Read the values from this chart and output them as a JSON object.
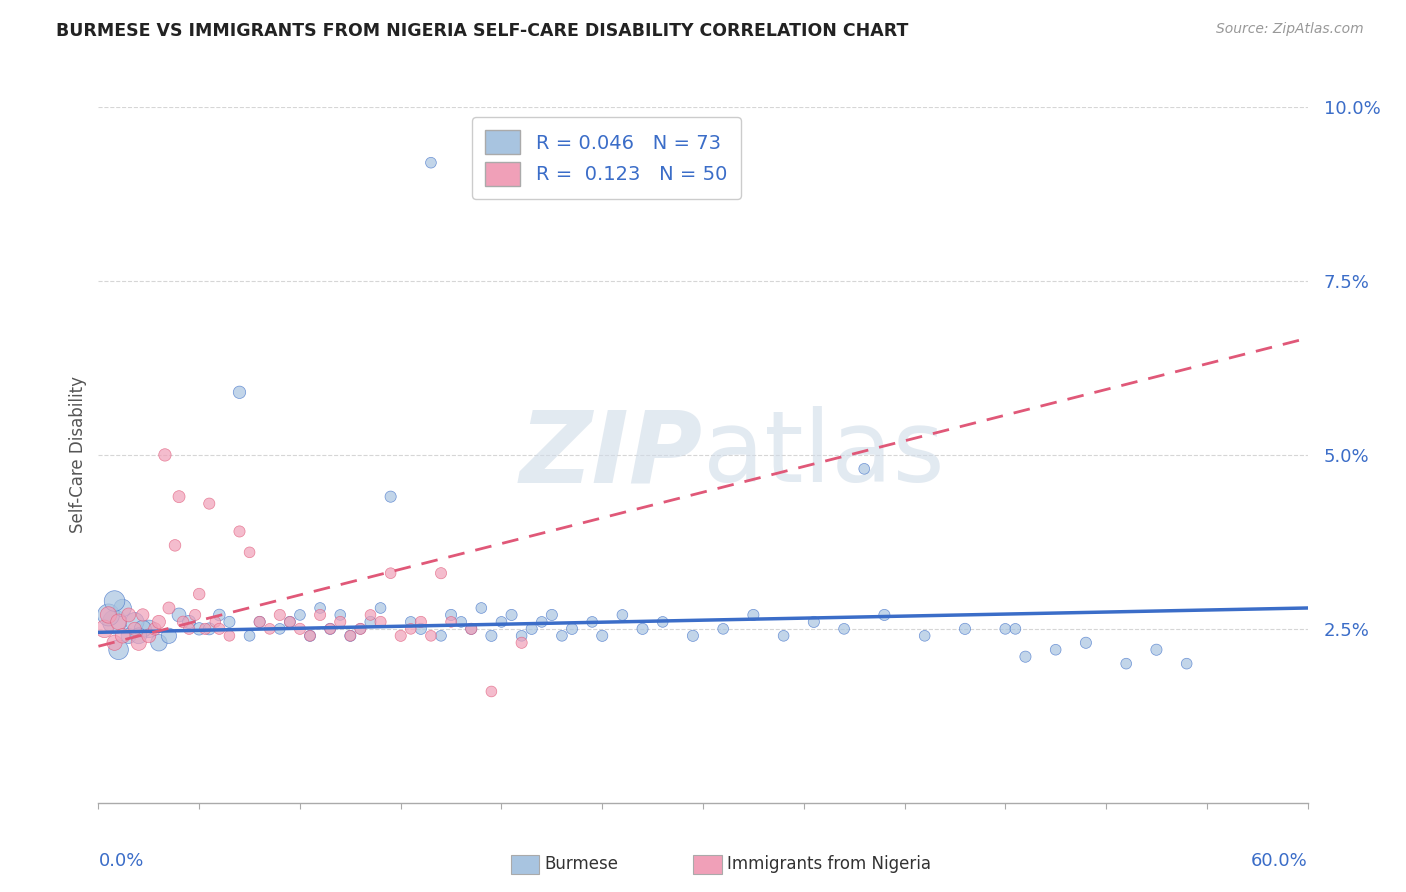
{
  "title": "BURMESE VS IMMIGRANTS FROM NIGERIA SELF-CARE DISABILITY CORRELATION CHART",
  "source": "Source: ZipAtlas.com",
  "ylabel": "Self-Care Disability",
  "xmin": 0.0,
  "xmax": 0.6,
  "ymin": 0.0,
  "ymax": 0.1,
  "ytick_positions": [
    0.025,
    0.05,
    0.075,
    0.1
  ],
  "ytick_labels": [
    "2.5%",
    "5.0%",
    "7.5%",
    "10.0%"
  ],
  "color_blue": "#a8c4e0",
  "color_pink": "#f0a0b8",
  "color_blue_dark": "#3b6dc8",
  "color_pink_dark": "#e05878",
  "background_color": "#ffffff",
  "grid_color": "#cccccc",
  "watermark_color": "#d0dce8",
  "title_color": "#222222",
  "source_color": "#999999",
  "axis_label_color": "#3b6dc8",
  "ylabel_color": "#555555",
  "burmese_x": [
    0.165,
    0.008,
    0.015,
    0.005,
    0.01,
    0.025,
    0.03,
    0.018,
    0.022,
    0.04,
    0.035,
    0.012,
    0.045,
    0.05,
    0.008,
    0.02,
    0.055,
    0.06,
    0.065,
    0.07,
    0.075,
    0.08,
    0.09,
    0.095,
    0.1,
    0.105,
    0.11,
    0.115,
    0.12,
    0.125,
    0.13,
    0.135,
    0.14,
    0.145,
    0.155,
    0.16,
    0.17,
    0.175,
    0.18,
    0.185,
    0.19,
    0.195,
    0.2,
    0.205,
    0.21,
    0.215,
    0.22,
    0.225,
    0.23,
    0.235,
    0.245,
    0.25,
    0.26,
    0.27,
    0.28,
    0.295,
    0.31,
    0.325,
    0.34,
    0.355,
    0.37,
    0.39,
    0.41,
    0.43,
    0.45,
    0.46,
    0.475,
    0.49,
    0.51,
    0.525,
    0.38,
    0.54,
    0.455
  ],
  "burmese_y": [
    0.092,
    0.026,
    0.024,
    0.027,
    0.022,
    0.025,
    0.023,
    0.026,
    0.025,
    0.027,
    0.024,
    0.028,
    0.026,
    0.025,
    0.029,
    0.024,
    0.025,
    0.027,
    0.026,
    0.059,
    0.024,
    0.026,
    0.025,
    0.026,
    0.027,
    0.024,
    0.028,
    0.025,
    0.027,
    0.024,
    0.025,
    0.026,
    0.028,
    0.044,
    0.026,
    0.025,
    0.024,
    0.027,
    0.026,
    0.025,
    0.028,
    0.024,
    0.026,
    0.027,
    0.024,
    0.025,
    0.026,
    0.027,
    0.024,
    0.025,
    0.026,
    0.024,
    0.027,
    0.025,
    0.026,
    0.024,
    0.025,
    0.027,
    0.024,
    0.026,
    0.025,
    0.027,
    0.024,
    0.025,
    0.025,
    0.021,
    0.022,
    0.023,
    0.02,
    0.022,
    0.048,
    0.02,
    0.025
  ],
  "burmese_size": [
    60,
    300,
    120,
    250,
    200,
    160,
    140,
    180,
    150,
    100,
    120,
    160,
    90,
    80,
    220,
    130,
    75,
    70,
    65,
    80,
    60,
    65,
    60,
    65,
    60,
    65,
    60,
    65,
    60,
    65,
    60,
    65,
    60,
    65,
    60,
    65,
    60,
    65,
    60,
    65,
    60,
    65,
    60,
    65,
    60,
    65,
    60,
    65,
    60,
    65,
    60,
    65,
    60,
    65,
    60,
    65,
    60,
    65,
    60,
    65,
    60,
    65,
    60,
    65,
    60,
    65,
    60,
    65,
    60,
    65,
    60,
    60,
    60
  ],
  "nigeria_x": [
    0.003,
    0.005,
    0.008,
    0.01,
    0.012,
    0.015,
    0.018,
    0.02,
    0.022,
    0.025,
    0.028,
    0.03,
    0.033,
    0.035,
    0.038,
    0.04,
    0.042,
    0.045,
    0.048,
    0.05,
    0.053,
    0.055,
    0.058,
    0.06,
    0.065,
    0.07,
    0.075,
    0.08,
    0.085,
    0.09,
    0.095,
    0.1,
    0.105,
    0.11,
    0.115,
    0.12,
    0.125,
    0.13,
    0.135,
    0.14,
    0.145,
    0.15,
    0.155,
    0.16,
    0.165,
    0.17,
    0.175,
    0.185,
    0.195,
    0.21
  ],
  "nigeria_y": [
    0.025,
    0.027,
    0.023,
    0.026,
    0.024,
    0.027,
    0.025,
    0.023,
    0.027,
    0.024,
    0.025,
    0.026,
    0.05,
    0.028,
    0.037,
    0.044,
    0.026,
    0.025,
    0.027,
    0.03,
    0.025,
    0.043,
    0.026,
    0.025,
    0.024,
    0.039,
    0.036,
    0.026,
    0.025,
    0.027,
    0.026,
    0.025,
    0.024,
    0.027,
    0.025,
    0.026,
    0.024,
    0.025,
    0.027,
    0.026,
    0.033,
    0.024,
    0.025,
    0.026,
    0.024,
    0.033,
    0.026,
    0.025,
    0.016,
    0.023
  ],
  "nigeria_size": [
    160,
    140,
    120,
    130,
    110,
    100,
    90,
    120,
    80,
    100,
    80,
    90,
    80,
    75,
    70,
    75,
    70,
    65,
    65,
    70,
    65,
    65,
    60,
    65,
    60,
    65,
    60,
    65,
    60,
    65,
    60,
    65,
    60,
    65,
    60,
    65,
    60,
    65,
    60,
    65,
    60,
    65,
    60,
    65,
    60,
    65,
    60,
    65,
    60,
    65
  ],
  "blue_line_x": [
    0.0,
    0.6
  ],
  "blue_line_y": [
    0.0245,
    0.028
  ],
  "pink_line_x": [
    0.0,
    0.21
  ],
  "pink_line_y": [
    0.0225,
    0.038
  ]
}
